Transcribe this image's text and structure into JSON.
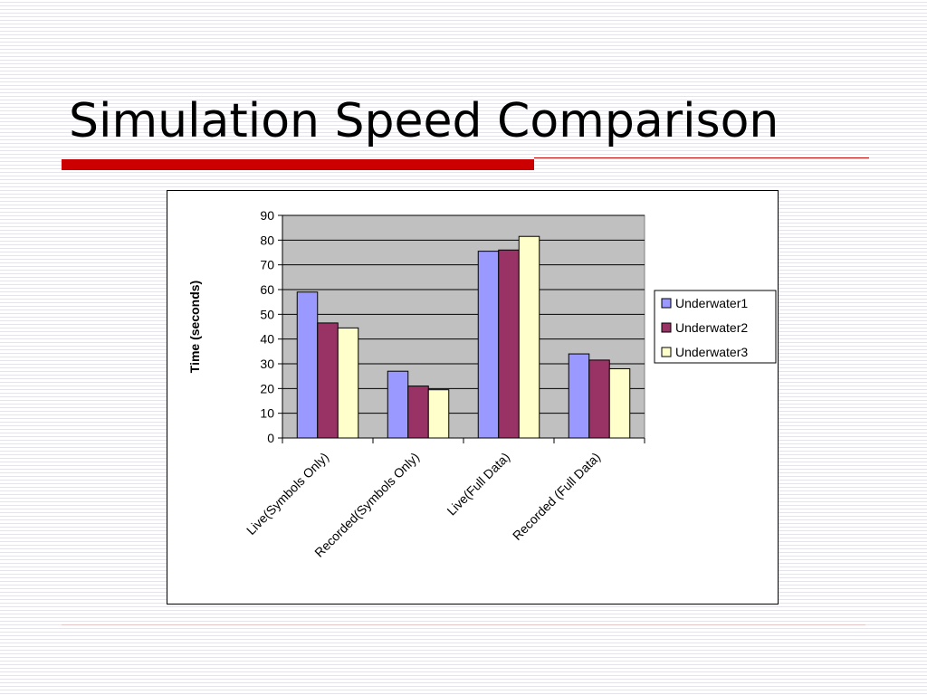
{
  "slide": {
    "title": "Simulation Speed Comparison"
  },
  "chart_data": {
    "type": "bar",
    "title": "",
    "xlabel": "",
    "ylabel": "Time (seconds)",
    "ylim": [
      0,
      90
    ],
    "yticks": [
      0,
      10,
      20,
      30,
      40,
      50,
      60,
      70,
      80,
      90
    ],
    "categories": [
      "Live(Symbols Only)",
      "Recorded(Symbols Only)",
      "Live(Full Data)",
      "Recorded (Full Data)"
    ],
    "series": [
      {
        "name": "Underwater1",
        "color": "#9999ff",
        "values": [
          59,
          27,
          75.5,
          34
        ]
      },
      {
        "name": "Underwater2",
        "color": "#993366",
        "values": [
          46.5,
          21,
          76,
          31.5
        ]
      },
      {
        "name": "Underwater3",
        "color": "#ffffcc",
        "values": [
          44.5,
          19.5,
          81.5,
          28
        ]
      }
    ],
    "grid": true,
    "plot_background": "#c0c0c0",
    "legend": "right"
  }
}
